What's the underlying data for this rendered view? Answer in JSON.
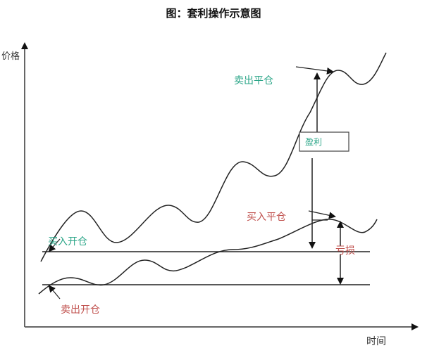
{
  "title": "图：套利操作示意图",
  "axes": {
    "y_label": "价格",
    "x_label": "时间"
  },
  "labels": {
    "sell_close": "卖出平仓",
    "profit": "盈利",
    "buy_close": "买入平仓",
    "buy_open": "买入开仓",
    "loss": "亏损",
    "sell_open": "卖出开仓"
  },
  "colors": {
    "green": "#2aa587",
    "red": "#c0504d",
    "line": "#222222"
  }
}
